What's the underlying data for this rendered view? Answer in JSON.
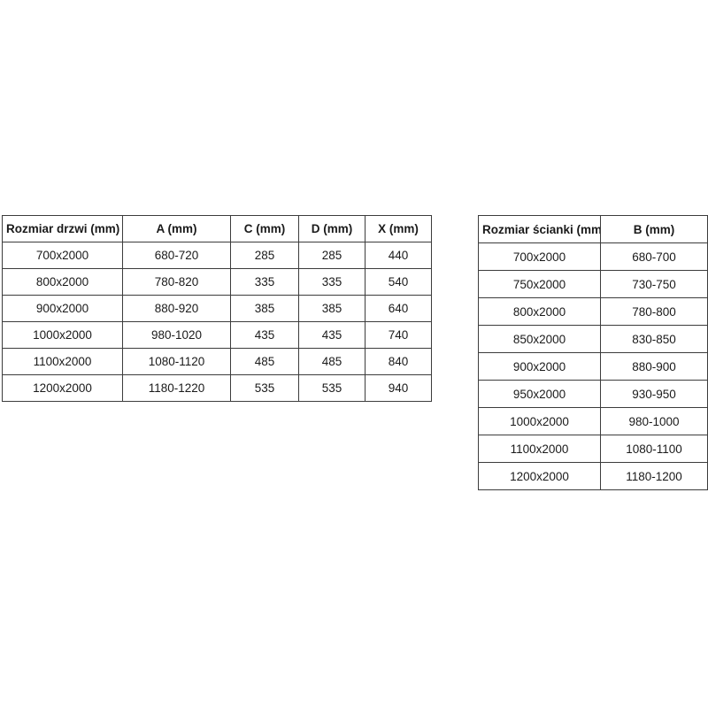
{
  "colors": {
    "background": "#ffffff",
    "border": "#3c3c3c",
    "text": "#1a1a1a"
  },
  "tables": [
    {
      "name": "door-sizes",
      "headers": [
        "Rozmiar drzwi (mm)",
        "A (mm)",
        "C (mm)",
        "D (mm)",
        "X (mm)"
      ],
      "rows": [
        [
          "700x2000",
          "680-720",
          "285",
          "285",
          "440"
        ],
        [
          "800x2000",
          "780-820",
          "335",
          "335",
          "540"
        ],
        [
          "900x2000",
          "880-920",
          "385",
          "385",
          "640"
        ],
        [
          "1000x2000",
          "980-1020",
          "435",
          "435",
          "740"
        ],
        [
          "1100x2000",
          "1080-1120",
          "485",
          "485",
          "840"
        ],
        [
          "1200x2000",
          "1180-1220",
          "535",
          "535",
          "940"
        ]
      ]
    },
    {
      "name": "wall-sizes",
      "headers": [
        "Rozmiar ścianki (mm)",
        "B (mm)"
      ],
      "rows": [
        [
          "700x2000",
          "680-700"
        ],
        [
          "750x2000",
          "730-750"
        ],
        [
          "800x2000",
          "780-800"
        ],
        [
          "850x2000",
          "830-850"
        ],
        [
          "900x2000",
          "880-900"
        ],
        [
          "950x2000",
          "930-950"
        ],
        [
          "1000x2000",
          "980-1000"
        ],
        [
          "1100x2000",
          "1080-1100"
        ],
        [
          "1200x2000",
          "1180-1200"
        ]
      ]
    }
  ]
}
